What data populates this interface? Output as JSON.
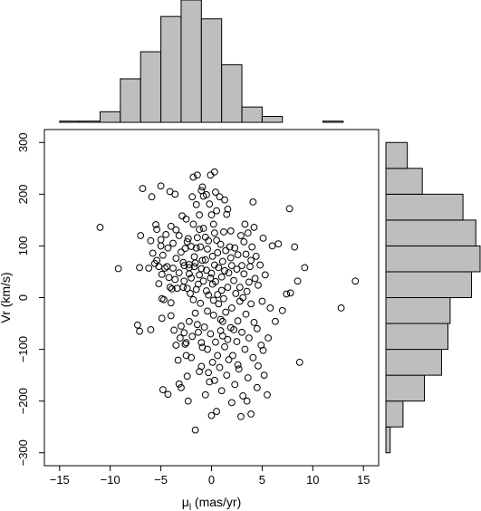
{
  "chart_data": {
    "type": "scatter",
    "xlabel_main": "μ",
    "xlabel_sub": "l",
    "xlabel_rest": " (mas/yr)",
    "ylabel": "Vr (km/s)",
    "xlim": [
      -16.5,
      16.5
    ],
    "ylim": [
      -325,
      325
    ],
    "xticks": [
      -15,
      -10,
      -5,
      0,
      5,
      10,
      15
    ],
    "yticks": [
      -300,
      -200,
      -100,
      0,
      100,
      200,
      300
    ],
    "xtick_labels": [
      "−15",
      "−10",
      "−5",
      "0",
      "5",
      "10",
      "15"
    ],
    "ytick_labels": [
      "−300",
      "−200",
      "−100",
      "0",
      "100",
      "200",
      "300"
    ],
    "grid": false,
    "marker": "open-circle",
    "colors": {
      "bar_fill": "#bebebe",
      "stroke": "#000000"
    },
    "histogram_x": {
      "bin_edges": [
        -15,
        -13,
        -11,
        -9,
        -7,
        -5,
        -3,
        -1,
        1,
        3,
        5,
        7,
        9,
        11,
        13,
        15
      ],
      "counts": [
        1,
        1,
        9,
        37,
        60,
        90,
        104,
        88,
        49,
        13,
        5,
        0,
        0,
        1,
        0
      ]
    },
    "histogram_y": {
      "bin_edges": [
        -300,
        -250,
        -200,
        -150,
        -100,
        -50,
        0,
        50,
        100,
        150,
        200,
        250,
        300
      ],
      "counts": [
        2,
        8,
        18,
        26,
        29,
        30,
        40,
        44,
        42,
        36,
        17,
        10
      ]
    },
    "points": [
      [
        -11.0,
        136
      ],
      [
        -9.2,
        56
      ],
      [
        -7.3,
        -53
      ],
      [
        -7.1,
        -65
      ],
      [
        -7.1,
        58
      ],
      [
        -7.0,
        120
      ],
      [
        -6.8,
        211
      ],
      [
        -6.2,
        57
      ],
      [
        -6.0,
        -62
      ],
      [
        -6.0,
        110
      ],
      [
        -5.9,
        195
      ],
      [
        -5.8,
        86
      ],
      [
        -5.5,
        141
      ],
      [
        -5.4,
        132
      ],
      [
        -5.4,
        72
      ],
      [
        -5.2,
        60
      ],
      [
        -5.2,
        27
      ],
      [
        -5.0,
        216
      ],
      [
        -5.0,
        112
      ],
      [
        -5.0,
        100
      ],
      [
        -4.9,
        45
      ],
      [
        -4.9,
        -2
      ],
      [
        -4.9,
        -40
      ],
      [
        -4.8,
        82
      ],
      [
        -4.8,
        -178
      ],
      [
        -4.7,
        -4
      ],
      [
        -4.6,
        57
      ],
      [
        -4.5,
        122
      ],
      [
        -4.3,
        -187
      ],
      [
        -4.3,
        96
      ],
      [
        -4.2,
        39
      ],
      [
        -4.1,
        20
      ],
      [
        -4.1,
        205
      ],
      [
        -4.0,
        138
      ],
      [
        -4.0,
        -35
      ],
      [
        -3.9,
        17
      ],
      [
        -3.8,
        105
      ],
      [
        -3.8,
        57
      ],
      [
        -3.7,
        -63
      ],
      [
        -3.6,
        200
      ],
      [
        -3.5,
        76
      ],
      [
        -3.5,
        131
      ],
      [
        -3.4,
        18
      ],
      [
        -3.3,
        -121
      ],
      [
        -3.2,
        48
      ],
      [
        -3.2,
        120
      ],
      [
        -3.2,
        -167
      ],
      [
        -3.1,
        -78
      ],
      [
        -3.0,
        88
      ],
      [
        -3.0,
        -174
      ],
      [
        -2.9,
        158
      ],
      [
        -2.8,
        20
      ],
      [
        -2.8,
        68
      ],
      [
        -2.7,
        -68
      ],
      [
        -2.7,
        62
      ],
      [
        -2.6,
        95
      ],
      [
        -2.6,
        -90
      ],
      [
        -2.5,
        -87
      ],
      [
        -2.5,
        152
      ],
      [
        -2.4,
        18
      ],
      [
        -2.4,
        -152
      ],
      [
        -2.4,
        108
      ],
      [
        -2.3,
        114
      ],
      [
        -2.3,
        -200
      ],
      [
        -2.2,
        46
      ],
      [
        -2.2,
        -46
      ],
      [
        -2.2,
        64
      ],
      [
        -2.2,
        58
      ],
      [
        -2.1,
        8
      ],
      [
        -2.0,
        99
      ],
      [
        -2.0,
        38
      ],
      [
        -1.9,
        195
      ],
      [
        -1.8,
        233
      ],
      [
        -1.8,
        -4
      ],
      [
        -1.8,
        142
      ],
      [
        -1.7,
        79
      ],
      [
        -1.7,
        60
      ],
      [
        -1.6,
        67
      ],
      [
        -1.6,
        -30
      ],
      [
        -1.6,
        -256
      ],
      [
        -1.5,
        16
      ],
      [
        -1.5,
        96
      ],
      [
        -1.5,
        180
      ],
      [
        -1.4,
        116
      ],
      [
        -1.4,
        237
      ],
      [
        -1.3,
        -67
      ],
      [
        -1.3,
        26
      ],
      [
        -1.2,
        160
      ],
      [
        -1.2,
        -143
      ],
      [
        -1.2,
        44
      ],
      [
        -1.1,
        98
      ],
      [
        -1.1,
        -11
      ],
      [
        -1.0,
        207
      ],
      [
        -1.0,
        56
      ],
      [
        -1.0,
        -87
      ],
      [
        -1.0,
        -133
      ],
      [
        -0.9,
        214
      ],
      [
        -0.9,
        -96
      ],
      [
        -0.8,
        196
      ],
      [
        -0.8,
        32
      ],
      [
        -0.8,
        134
      ],
      [
        -0.7,
        -57
      ],
      [
        -0.6,
        73
      ],
      [
        -0.6,
        117
      ],
      [
        -0.6,
        -188
      ],
      [
        -0.5,
        199
      ],
      [
        -0.5,
        53
      ],
      [
        -0.5,
        13
      ],
      [
        -0.4,
        -100
      ],
      [
        -0.4,
        94
      ],
      [
        -0.4,
        -26
      ],
      [
        -0.3,
        110
      ],
      [
        -0.3,
        5
      ],
      [
        -0.2,
        181
      ],
      [
        -0.2,
        -163
      ],
      [
        -0.1,
        -70
      ],
      [
        -0.1,
        38
      ],
      [
        -0.1,
        237
      ],
      [
        0.0,
        -228
      ],
      [
        0.0,
        160
      ],
      [
        0.1,
        26
      ],
      [
        0.1,
        -125
      ],
      [
        0.1,
        80
      ],
      [
        0.2,
        -5
      ],
      [
        0.2,
        142
      ],
      [
        0.2,
        -34
      ],
      [
        0.3,
        63
      ],
      [
        0.3,
        125
      ],
      [
        0.3,
        243
      ],
      [
        0.4,
        -86
      ],
      [
        0.4,
        204
      ],
      [
        0.4,
        31
      ],
      [
        0.5,
        -220
      ],
      [
        0.5,
        168
      ],
      [
        0.6,
        -112
      ],
      [
        0.6,
        6
      ],
      [
        0.6,
        87
      ],
      [
        0.7,
        58
      ],
      [
        0.7,
        -12
      ],
      [
        0.8,
        -135
      ],
      [
        0.8,
        195
      ],
      [
        0.9,
        103
      ],
      [
        0.9,
        -64
      ],
      [
        1.0,
        40
      ],
      [
        1.0,
        -180
      ],
      [
        1.0,
        14
      ],
      [
        1.1,
        70
      ],
      [
        1.1,
        -46
      ],
      [
        1.2,
        127
      ],
      [
        1.2,
        -2
      ],
      [
        1.3,
        189
      ],
      [
        1.3,
        -95
      ],
      [
        1.3,
        52
      ],
      [
        1.4,
        -28
      ],
      [
        1.4,
        91
      ],
      [
        1.5,
        161
      ],
      [
        1.5,
        -150
      ],
      [
        1.6,
        -81
      ],
      [
        1.6,
        20
      ],
      [
        1.7,
        48
      ],
      [
        1.7,
        -120
      ],
      [
        1.8,
        98
      ],
      [
        1.9,
        -58
      ],
      [
        1.9,
        129
      ],
      [
        2.0,
        -203
      ],
      [
        2.0,
        62
      ],
      [
        2.0,
        -20
      ],
      [
        2.1,
        -112
      ],
      [
        2.2,
        33
      ],
      [
        2.3,
        96
      ],
      [
        2.3,
        -168
      ],
      [
        2.4,
        8
      ],
      [
        2.5,
        -85
      ],
      [
        2.5,
        55
      ],
      [
        2.6,
        -45
      ],
      [
        2.6,
        83
      ],
      [
        2.7,
        -138
      ],
      [
        2.8,
        20
      ],
      [
        2.9,
        -230
      ],
      [
        2.9,
        120
      ],
      [
        3.0,
        -67
      ],
      [
        3.0,
        62
      ],
      [
        3.1,
        -190
      ],
      [
        3.1,
        0
      ],
      [
        3.2,
        46
      ],
      [
        3.3,
        -100
      ],
      [
        3.3,
        142
      ],
      [
        3.4,
        -32
      ],
      [
        3.4,
        84
      ],
      [
        3.5,
        12
      ],
      [
        3.6,
        -155
      ],
      [
        3.6,
        125
      ],
      [
        3.7,
        -78
      ],
      [
        3.7,
        30
      ],
      [
        3.8,
        60
      ],
      [
        3.9,
        -12
      ],
      [
        3.9,
        -225
      ],
      [
        4.0,
        98
      ],
      [
        4.1,
        -116
      ],
      [
        4.1,
        185
      ],
      [
        4.2,
        -48
      ],
      [
        4.3,
        37
      ],
      [
        4.4,
        80
      ],
      [
        4.5,
        -174
      ],
      [
        4.6,
        -132
      ],
      [
        4.6,
        24
      ],
      [
        4.8,
        63
      ],
      [
        4.9,
        -92
      ],
      [
        5.0,
        -7
      ],
      [
        5.1,
        115
      ],
      [
        5.2,
        -150
      ],
      [
        5.3,
        44
      ],
      [
        5.5,
        -188
      ],
      [
        5.6,
        -78
      ],
      [
        5.8,
        -20
      ],
      [
        6.0,
        100
      ],
      [
        6.3,
        -46
      ],
      [
        6.6,
        104
      ],
      [
        7.0,
        -25
      ],
      [
        7.4,
        7
      ],
      [
        7.7,
        172
      ],
      [
        7.8,
        9
      ],
      [
        8.2,
        98
      ],
      [
        8.5,
        32
      ],
      [
        8.7,
        -125
      ],
      [
        9.2,
        58
      ],
      [
        12.8,
        -20
      ],
      [
        14.2,
        32
      ],
      [
        -3.5,
        -92
      ],
      [
        -3.0,
        -55
      ],
      [
        -2.7,
        32
      ],
      [
        -2.0,
        -116
      ],
      [
        -1.4,
        -52
      ],
      [
        -0.9,
        72
      ],
      [
        -0.3,
        -145
      ],
      [
        0.5,
        111
      ],
      [
        1.1,
        -74
      ],
      [
        1.6,
        171
      ],
      [
        2.2,
        -62
      ],
      [
        2.8,
        -7
      ],
      [
        3.2,
        108
      ],
      [
        3.9,
        72
      ],
      [
        4.5,
        -60
      ],
      [
        5.1,
        -102
      ],
      [
        -4.4,
        60
      ],
      [
        -3.6,
        35
      ],
      [
        -2.5,
        -112
      ],
      [
        -1.2,
        132
      ],
      [
        0.0,
        47
      ],
      [
        0.9,
        -42
      ],
      [
        1.9,
        77
      ],
      [
        2.6,
        -130
      ],
      [
        3.5,
        -200
      ],
      [
        4.2,
        136
      ],
      [
        -5.6,
        66
      ],
      [
        -4.0,
        -10
      ],
      [
        -1.9,
        -75
      ],
      [
        0.3,
        -160
      ]
    ]
  }
}
